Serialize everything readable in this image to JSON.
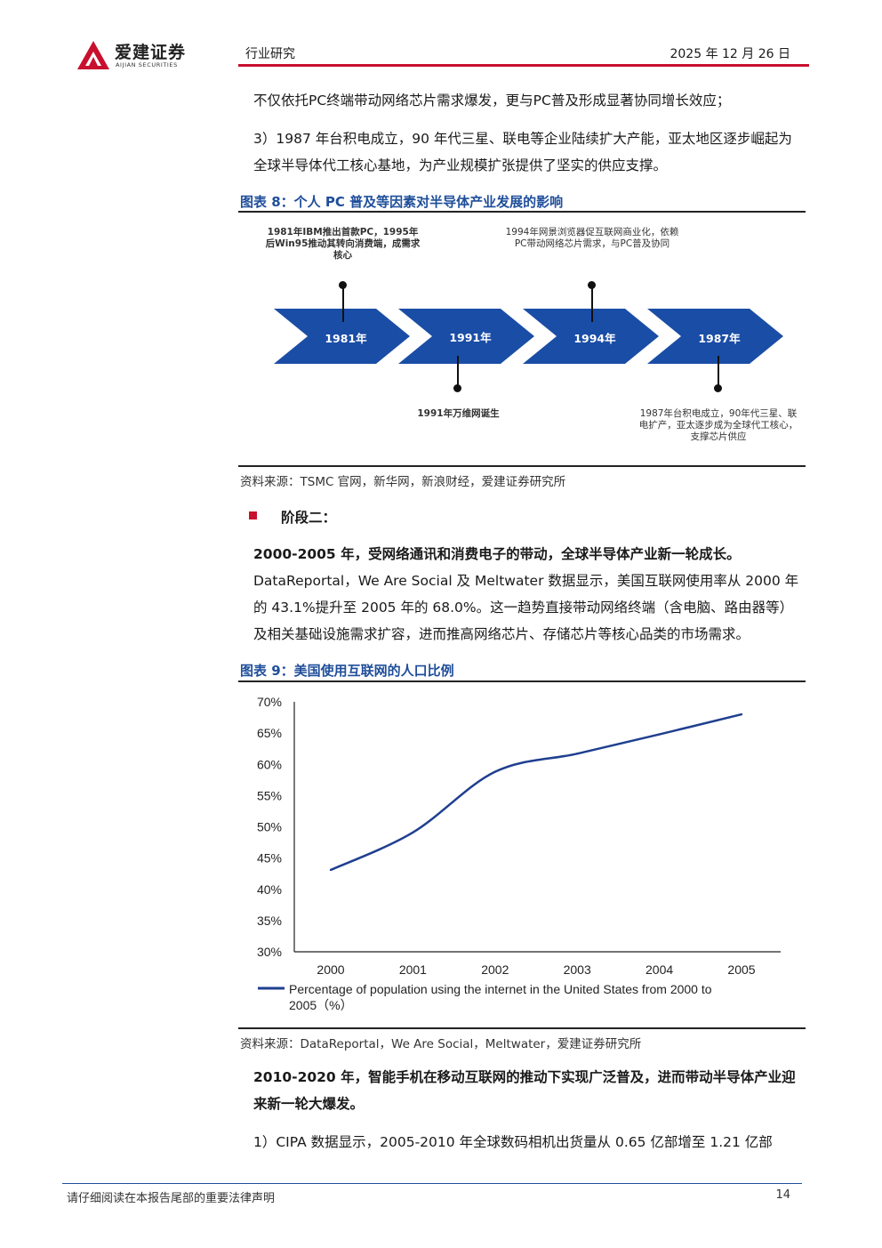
{
  "header": {
    "logo_cn": "爱建证券",
    "logo_en": "AIJIAN SECURITIES",
    "section": "行业研究",
    "date": "2025 年 12 月 26 日"
  },
  "body": {
    "para1": "不仅依托PC终端带动网络芯片需求爆发，更与PC普及形成显著协同增长效应；",
    "para2": "3）1987 年台积电成立，90 年代三星、联电等企业陆续扩大产能，亚太地区逐步崛起为全球半导体代工核心基地，为产业规模扩张提供了坚实的供应支撑。",
    "fig8_title": "图表 8：个人 PC 普及等因素对半导体产业发展的影响",
    "fig8_source": "资料来源：TSMC 官网，新华网，新浪财经，爱建证券研究所",
    "stage_label": "阶段二：",
    "para3_bold": "2000-2005 年，受网络通讯和消费电子的带动，全球半导体产业新一轮成长。",
    "para3_rest": "DataReportal，We Are Social 及 Meltwater 数据显示，美国互联网使用率从 2000 年的 43.1%提升至 2005 年的 68.0%。这一趋势直接带动网络终端（含电脑、路由器等）及相关基础设施需求扩容，进而推高网络芯片、存储芯片等核心品类的市场需求。",
    "fig9_title": "图表 9：美国使用互联网的人口比例",
    "fig9_source": "资料来源：DataReportal，We Are Social，Meltwater，爱建证券研究所",
    "para4": "2010-2020 年，智能手机在移动互联网的推动下实现广泛普及，进而带动半导体产业迎来新一轮大爆发。",
    "para5": "1）CIPA 数据显示，2005-2010 年全球数码相机出货量从 0.65 亿部增至 1.21 亿部"
  },
  "timeline": {
    "years": [
      "1981年",
      "1991年",
      "1994年",
      "1987年"
    ],
    "above": [
      {
        "text": "1981年IBM推出首款PC，1995年后Win95推动其转向消费端，成需求核心"
      },
      {
        "text": "1994年网景浏览器促互联网商业化，依赖PC带动网络芯片需求，与PC普及协同"
      }
    ],
    "below": [
      {
        "text": "1991年万维网诞生"
      },
      {
        "text": "1987年台积电成立，90年代三星、联电扩产，亚太逐步成为全球代工核心，支撑芯片供应"
      }
    ],
    "arrow_color": "#1a4da6"
  },
  "chart_data": {
    "type": "line",
    "x": [
      2000,
      2001,
      2002,
      2003,
      2004,
      2005
    ],
    "series": [
      {
        "name": "Percentage of population using the internet in the United States from 2000 to 2005（%）",
        "values": [
          43.1,
          49.1,
          58.8,
          61.7,
          64.8,
          68.0
        ],
        "color": "#1f3f8f"
      }
    ],
    "yticks": [
      "30%",
      "35%",
      "40%",
      "45%",
      "50%",
      "55%",
      "60%",
      "65%",
      "70%"
    ],
    "xticks": [
      "2000",
      "2001",
      "2002",
      "2003",
      "2004",
      "2005"
    ],
    "ylim": [
      30,
      70
    ],
    "legend_position": "bottom-left"
  },
  "footer": {
    "disclaimer": "请仔细阅读在本报告尾部的重要法律声明",
    "page": "14"
  }
}
